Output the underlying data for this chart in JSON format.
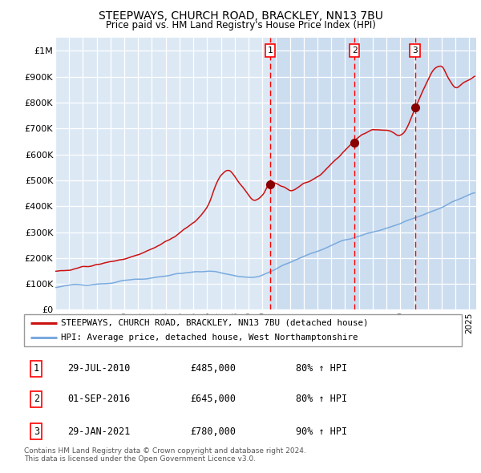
{
  "title_line1": "STEEPWAYS, CHURCH ROAD, BRACKLEY, NN13 7BU",
  "title_line2": "Price paid vs. HM Land Registry's House Price Index (HPI)",
  "ylim": [
    0,
    1050000
  ],
  "xlim_start": 1995.0,
  "xlim_end": 2025.5,
  "bg_color": "#dce9f5",
  "owned_bg_color": "#ccddf0",
  "grid_color": "#ffffff",
  "red_line_color": "#cc1111",
  "blue_line_color": "#7aaadd",
  "sale_marker_color": "#880000",
  "sale_dates_decimal": [
    2010.57,
    2016.67,
    2021.08
  ],
  "sale_prices": [
    485000,
    645000,
    780000
  ],
  "sale_labels": [
    "1",
    "2",
    "3"
  ],
  "legend_label_red": "STEEPWAYS, CHURCH ROAD, BRACKLEY, NN13 7BU (detached house)",
  "legend_label_blue": "HPI: Average price, detached house, West Northamptonshire",
  "table_data": [
    [
      "1",
      "29-JUL-2010",
      "£485,000",
      "80% ↑ HPI"
    ],
    [
      "2",
      "01-SEP-2016",
      "£645,000",
      "80% ↑ HPI"
    ],
    [
      "3",
      "29-JAN-2021",
      "£780,000",
      "90% ↑ HPI"
    ]
  ],
  "footnote": "Contains HM Land Registry data © Crown copyright and database right 2024.\nThis data is licensed under the Open Government Licence v3.0.",
  "ytick_labels": [
    "£0",
    "£100K",
    "£200K",
    "£300K",
    "£400K",
    "£500K",
    "£600K",
    "£700K",
    "£800K",
    "£900K",
    "£1M"
  ],
  "ytick_values": [
    0,
    100000,
    200000,
    300000,
    400000,
    500000,
    600000,
    700000,
    800000,
    900000,
    1000000
  ]
}
